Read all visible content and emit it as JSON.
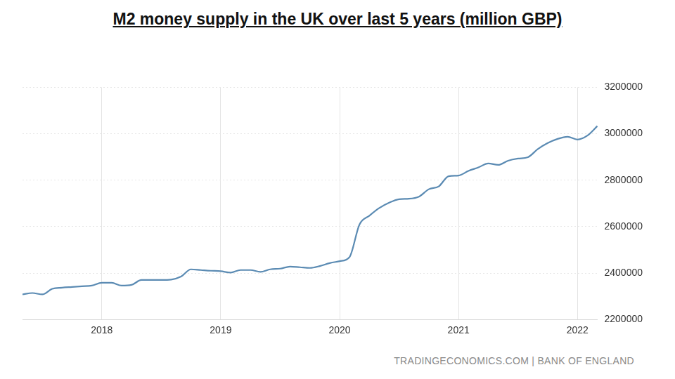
{
  "chart_data": {
    "type": "line",
    "title": "M2 money supply in the UK over last 5 years (million GBP)",
    "annotation": "TRADINGECONOMICS.COM | BANK OF ENGLAND",
    "categories": [
      null,
      null,
      null,
      null,
      null,
      null,
      null,
      null,
      "2018",
      null,
      null,
      null,
      null,
      null,
      null,
      null,
      null,
      null,
      null,
      null,
      "2019",
      null,
      null,
      null,
      null,
      null,
      null,
      null,
      null,
      null,
      null,
      null,
      "2020",
      null,
      null,
      null,
      null,
      null,
      null,
      null,
      null,
      null,
      null,
      null,
      "2021",
      null,
      null,
      null,
      null,
      null,
      null,
      null,
      null,
      null,
      null,
      null,
      "2022",
      null,
      null
    ],
    "values": [
      2308000,
      2314000,
      2308000,
      2332000,
      2337000,
      2340000,
      2343000,
      2346000,
      2358000,
      2358000,
      2346000,
      2349000,
      2370000,
      2370000,
      2370000,
      2372000,
      2385000,
      2416000,
      2413000,
      2410000,
      2408000,
      2402000,
      2413000,
      2413000,
      2405000,
      2416000,
      2419000,
      2428000,
      2425000,
      2422000,
      2430000,
      2443000,
      2451000,
      2469000,
      2609000,
      2647000,
      2680000,
      2703000,
      2718000,
      2720000,
      2729000,
      2761000,
      2773000,
      2817000,
      2820000,
      2840000,
      2855000,
      2872000,
      2866000,
      2884000,
      2893000,
      2899000,
      2934000,
      2960000,
      2978000,
      2987000,
      2975000,
      2992000,
      3033000
    ],
    "color": "#5b8bb3",
    "ylim": [
      2200000,
      3200000
    ],
    "yticks": [
      2200000,
      2400000,
      2600000,
      2800000,
      3000000,
      3200000
    ],
    "grid": true
  }
}
